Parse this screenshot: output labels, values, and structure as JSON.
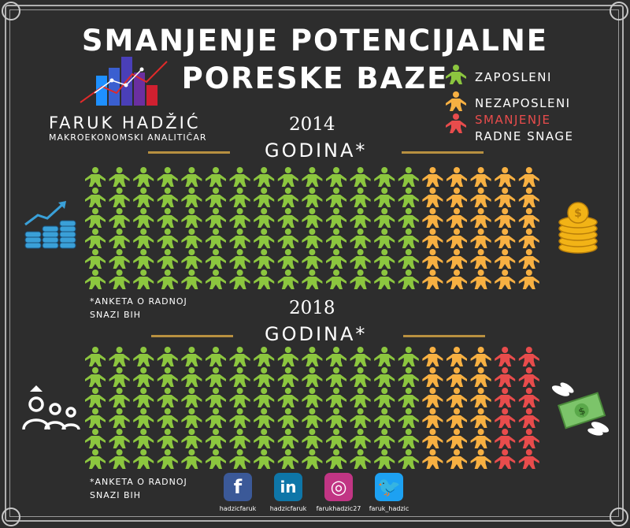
{
  "title_line1": "SMANJENJE POTENCIJALNE",
  "title_line2": "PORESKE BAZE",
  "brand": {
    "name": "FARUK HADŽIĆ",
    "subtitle": "MAKROEKONOMSKI ANALITIČAR"
  },
  "legend": {
    "employed": "ZAPOSLENI",
    "unemployed": "NEZAPOSLENI",
    "decline_line1": "SMANJENJE",
    "decline_line2": "RADNE SNAGE"
  },
  "colors": {
    "employed": "#8cc63f",
    "unemployed": "#f7b042",
    "decline": "#e84c4c",
    "rule": "#b89040",
    "background": "#2d2d2d"
  },
  "sections": [
    {
      "year": "2014",
      "label": "GODINA*",
      "note_line1": "*ANKETA O RADNOJ",
      "note_line2": "SNAZI BIH",
      "left_icon": "coin-stacks-growth-icon",
      "right_icon": "gold-coins-icon",
      "grid": {
        "columns": 19,
        "rows": 6,
        "employed_columns": 14,
        "unemployed_columns": 5,
        "decline_columns": 0
      }
    },
    {
      "year": "2018",
      "label": "GODINA*",
      "note_line1": "*ANKETA O RADNOJ",
      "note_line2": "SNAZI BIH",
      "left_icon": "people-group-icon",
      "right_icon": "flying-money-icon",
      "grid": {
        "columns": 19,
        "rows": 6,
        "employed_columns": 14,
        "unemployed_columns": 3,
        "decline_columns": 2
      }
    }
  ],
  "social": [
    {
      "icon": "facebook-icon",
      "glyph": "f",
      "handle": "hadzicfaruk",
      "color": "#3b5998"
    },
    {
      "icon": "linkedin-icon",
      "glyph": "in",
      "handle": "hadzicfaruk",
      "color": "#0e76a8"
    },
    {
      "icon": "instagram-icon",
      "glyph": "◎",
      "handle": "farukhadzic27",
      "color": "#c13584"
    },
    {
      "icon": "twitter-icon",
      "glyph": "🐦",
      "handle": "faruk_hadzic",
      "color": "#1da1f2"
    }
  ]
}
